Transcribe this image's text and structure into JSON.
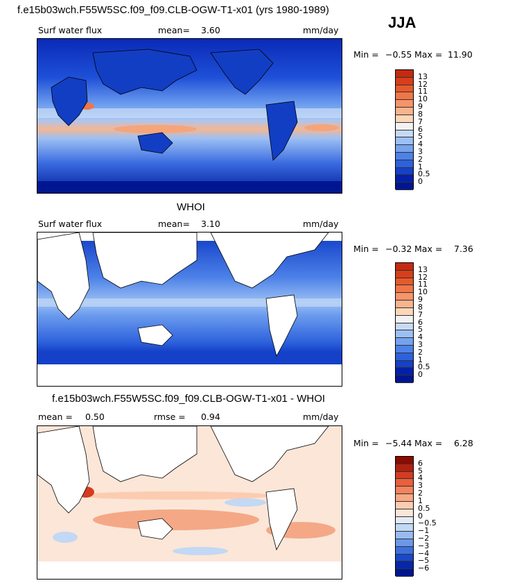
{
  "season": "JJA",
  "panels": [
    {
      "title": "f.e15b03wch.F55W5SC.f09_f09.CLB-OGW-T1-x01 (yrs 1980-1989)",
      "stat1_label": "Surf water flux",
      "stat2_label": "mean=",
      "stat2_value": "3.60",
      "units": "mm/day",
      "min_label": "Min =",
      "min_value": "−0.55",
      "max_label": "Max =",
      "max_value": "11.90",
      "colorbar_labels": [
        "13",
        "12",
        "11",
        "10",
        "9",
        "8",
        "7",
        "6",
        "5",
        "4",
        "3",
        "2",
        "1",
        "0.5",
        "0"
      ],
      "colorbar_colors": [
        "#c42a10",
        "#d83e1a",
        "#e65a2c",
        "#f07648",
        "#f79468",
        "#fab48c",
        "#fdd6b8",
        "#f2f2f2",
        "#c6daf6",
        "#9dc0f4",
        "#74a3ef",
        "#4d82e8",
        "#2d62dc",
        "#1540c8",
        "#0420a8",
        "#001690"
      ]
    },
    {
      "title": "WHOI",
      "stat1_label": "Surf water flux",
      "stat2_label": "mean=",
      "stat2_value": "3.10",
      "units": "mm/day",
      "min_label": "Min =",
      "min_value": "−0.32",
      "max_label": "Max =",
      "max_value": "7.36",
      "colorbar_labels": [
        "13",
        "12",
        "11",
        "10",
        "9",
        "8",
        "7",
        "6",
        "5",
        "4",
        "3",
        "2",
        "1",
        "0.5",
        "0"
      ],
      "colorbar_colors": [
        "#c42a10",
        "#d83e1a",
        "#e65a2c",
        "#f07648",
        "#f79468",
        "#fab48c",
        "#fdd6b8",
        "#f2f2f2",
        "#c6daf6",
        "#9dc0f4",
        "#74a3ef",
        "#4d82e8",
        "#2d62dc",
        "#1540c8",
        "#0420a8",
        "#001690"
      ]
    },
    {
      "title": "f.e15b03wch.F55W5SC.f09_f09.CLB-OGW-T1-x01 - WHOI",
      "stat1_label": "mean =",
      "stat1_value": "0.50",
      "stat2_label": "rmse =",
      "stat2_value": "0.94",
      "units": "mm/day",
      "min_label": "Min =",
      "min_value": "−5.44",
      "max_label": "Max =",
      "max_value": "6.28",
      "colorbar_labels": [
        "6",
        "5",
        "4",
        "3",
        "2",
        "1",
        "0.5",
        "0",
        "−0.5",
        "−1",
        "−2",
        "−3",
        "−4",
        "−5",
        "−6"
      ],
      "colorbar_colors": [
        "#8c0a00",
        "#b42010",
        "#d43c20",
        "#e8603c",
        "#f4845c",
        "#f9a884",
        "#fcccb0",
        "#fbe6d8",
        "#e2ecf8",
        "#c2d8f4",
        "#98bcef",
        "#6c98e8",
        "#3e70dc",
        "#1a48c8",
        "#0628a8",
        "#001690"
      ]
    }
  ]
}
